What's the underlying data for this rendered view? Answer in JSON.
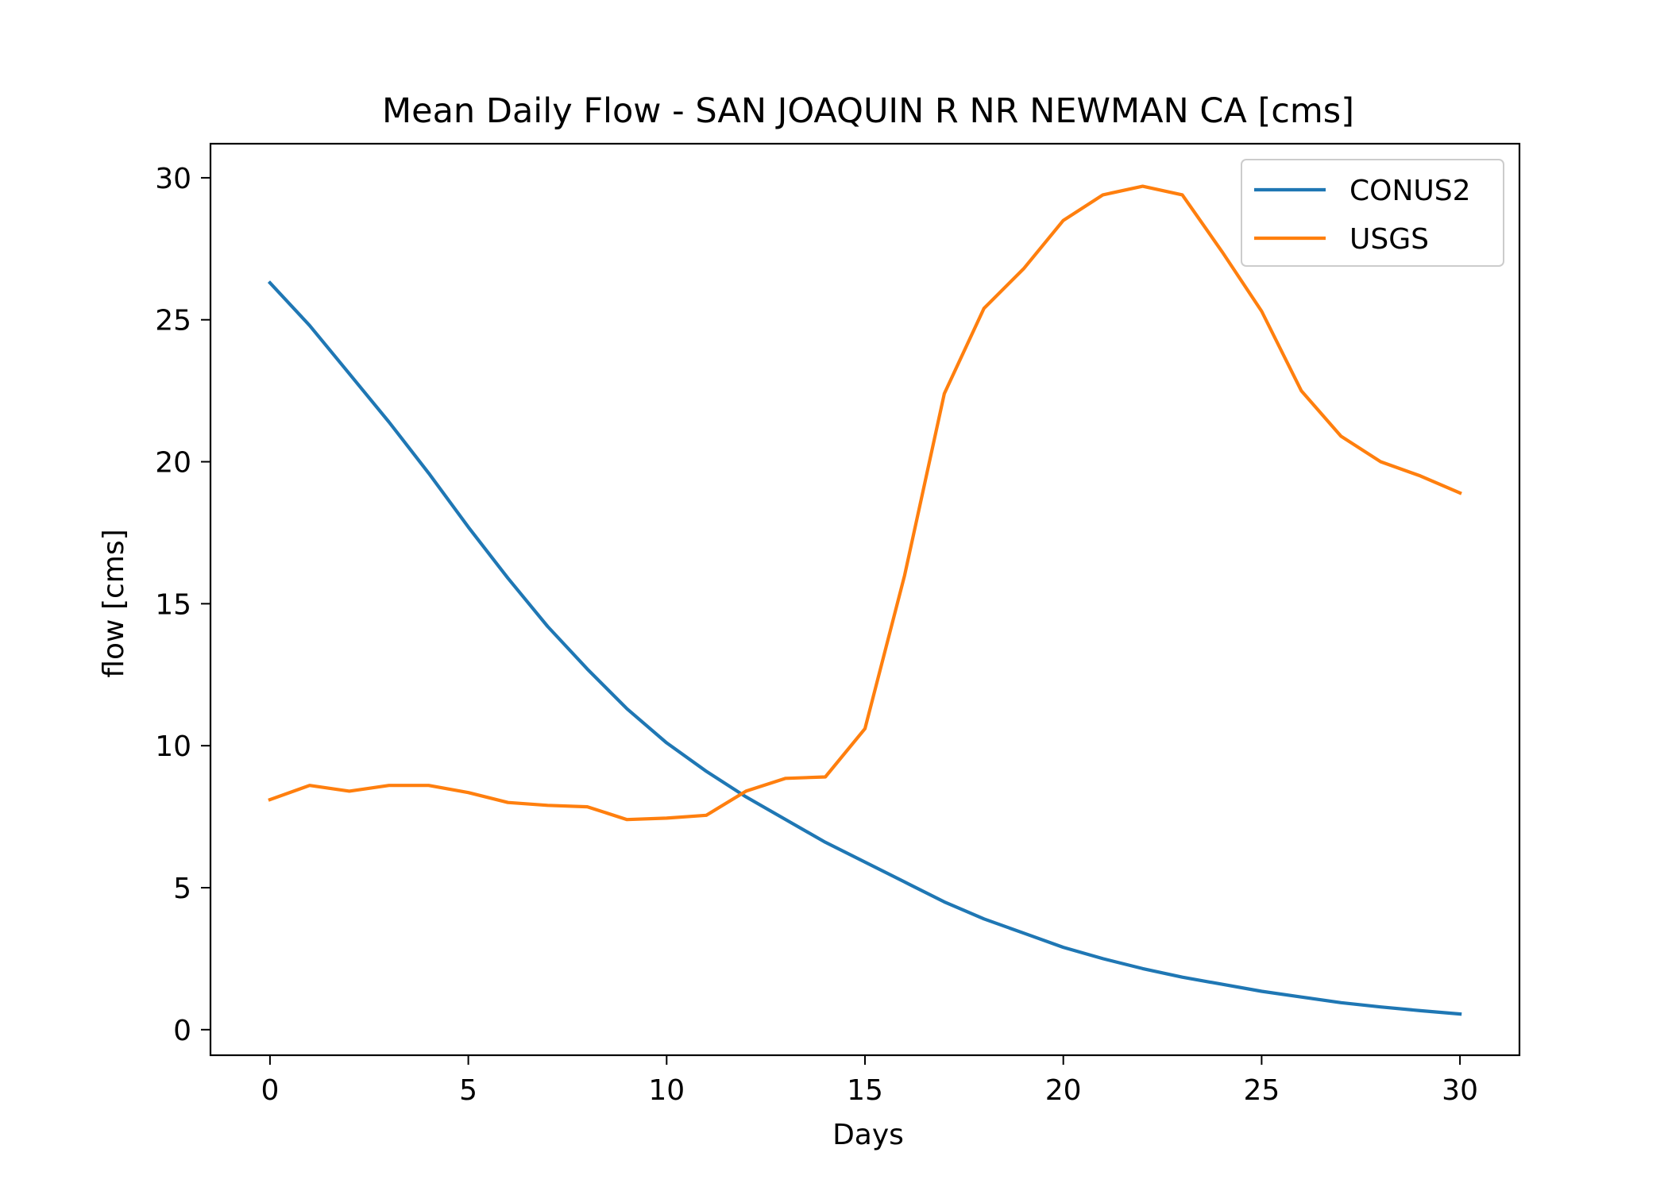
{
  "chart_data": {
    "type": "line",
    "title": "Mean Daily Flow - SAN JOAQUIN R NR NEWMAN CA [cms]",
    "xlabel": "Days",
    "ylabel": "flow [cms]",
    "xlim": [
      -1.5,
      31.5
    ],
    "ylim": [
      -0.9,
      31.2
    ],
    "xticks": [
      0,
      5,
      10,
      15,
      20,
      25,
      30
    ],
    "yticks": [
      0,
      5,
      10,
      15,
      20,
      25,
      30
    ],
    "grid": false,
    "legend_position": "top-right",
    "x": [
      0,
      1,
      2,
      3,
      4,
      5,
      6,
      7,
      8,
      9,
      10,
      11,
      12,
      13,
      14,
      15,
      16,
      17,
      18,
      19,
      20,
      21,
      22,
      23,
      24,
      25,
      26,
      27,
      28,
      29,
      30
    ],
    "series": [
      {
        "name": "CONUS2",
        "color": "#1f77b4",
        "values": [
          26.3,
          24.8,
          23.1,
          21.4,
          19.6,
          17.7,
          15.9,
          14.2,
          12.7,
          11.3,
          10.1,
          9.1,
          8.2,
          7.4,
          6.6,
          5.9,
          5.2,
          4.5,
          3.9,
          3.4,
          2.9,
          2.5,
          2.15,
          1.85,
          1.6,
          1.35,
          1.15,
          0.95,
          0.8,
          0.67,
          0.55
        ]
      },
      {
        "name": "USGS",
        "color": "#ff7f0e",
        "values": [
          8.1,
          8.6,
          8.4,
          8.6,
          8.6,
          8.35,
          8.0,
          7.9,
          7.85,
          7.4,
          7.45,
          7.55,
          8.4,
          8.85,
          8.9,
          10.6,
          16.0,
          22.4,
          25.4,
          26.8,
          28.5,
          29.4,
          29.7,
          29.4,
          27.4,
          25.3,
          22.5,
          20.9,
          20.0,
          19.5,
          18.9
        ]
      }
    ]
  }
}
